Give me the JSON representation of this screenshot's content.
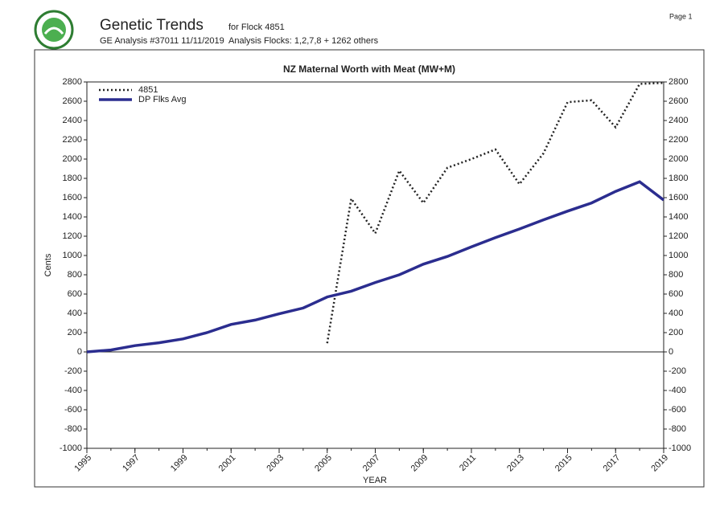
{
  "header": {
    "title": "Genetic Trends",
    "analysis": "GE Analysis #37011 11/11/2019",
    "flock": "for Flock 4851",
    "analysis_flocks": "Analysis Flocks: 1,2,7,8 + 1262 others",
    "page": "Page 1"
  },
  "chart_data": {
    "type": "line",
    "title": "NZ Maternal Worth with Meat (MW+M)",
    "x_label": "YEAR",
    "y_label": "Cents",
    "x": [
      1995,
      1996,
      1997,
      1998,
      1999,
      2000,
      2001,
      2002,
      2003,
      2004,
      2005,
      2006,
      2007,
      2008,
      2009,
      2010,
      2011,
      2012,
      2013,
      2014,
      2015,
      2016,
      2017,
      2018,
      2019
    ],
    "series": [
      {
        "name": "4851",
        "color": "#222222",
        "values": [
          null,
          null,
          null,
          null,
          null,
          null,
          null,
          null,
          null,
          null,
          90,
          1590,
          1230,
          1880,
          1545,
          1910,
          2000,
          2100,
          1740,
          2060,
          2590,
          2610,
          2330,
          2780,
          2790
        ]
      },
      {
        "name": "DP Flks Avg",
        "color": "#2b2d8f",
        "values": [
          0,
          20,
          65,
          95,
          135,
          200,
          285,
          330,
          395,
          455,
          570,
          630,
          720,
          800,
          910,
          990,
          1090,
          1185,
          1275,
          1370,
          1460,
          1545,
          1665,
          1765,
          1575
        ]
      }
    ],
    "xlim": [
      1995,
      2019
    ],
    "xticks": [
      1995,
      1997,
      1999,
      2001,
      2003,
      2005,
      2007,
      2009,
      2011,
      2013,
      2015,
      2017,
      2019
    ],
    "ylim": [
      -1000,
      2800
    ],
    "yticks": [
      -1000,
      -800,
      -600,
      -400,
      -200,
      0,
      200,
      400,
      600,
      800,
      1000,
      1200,
      1400,
      1600,
      1800,
      2000,
      2200,
      2400,
      2600,
      2800
    ],
    "legend": "upper left",
    "grid": false
  }
}
